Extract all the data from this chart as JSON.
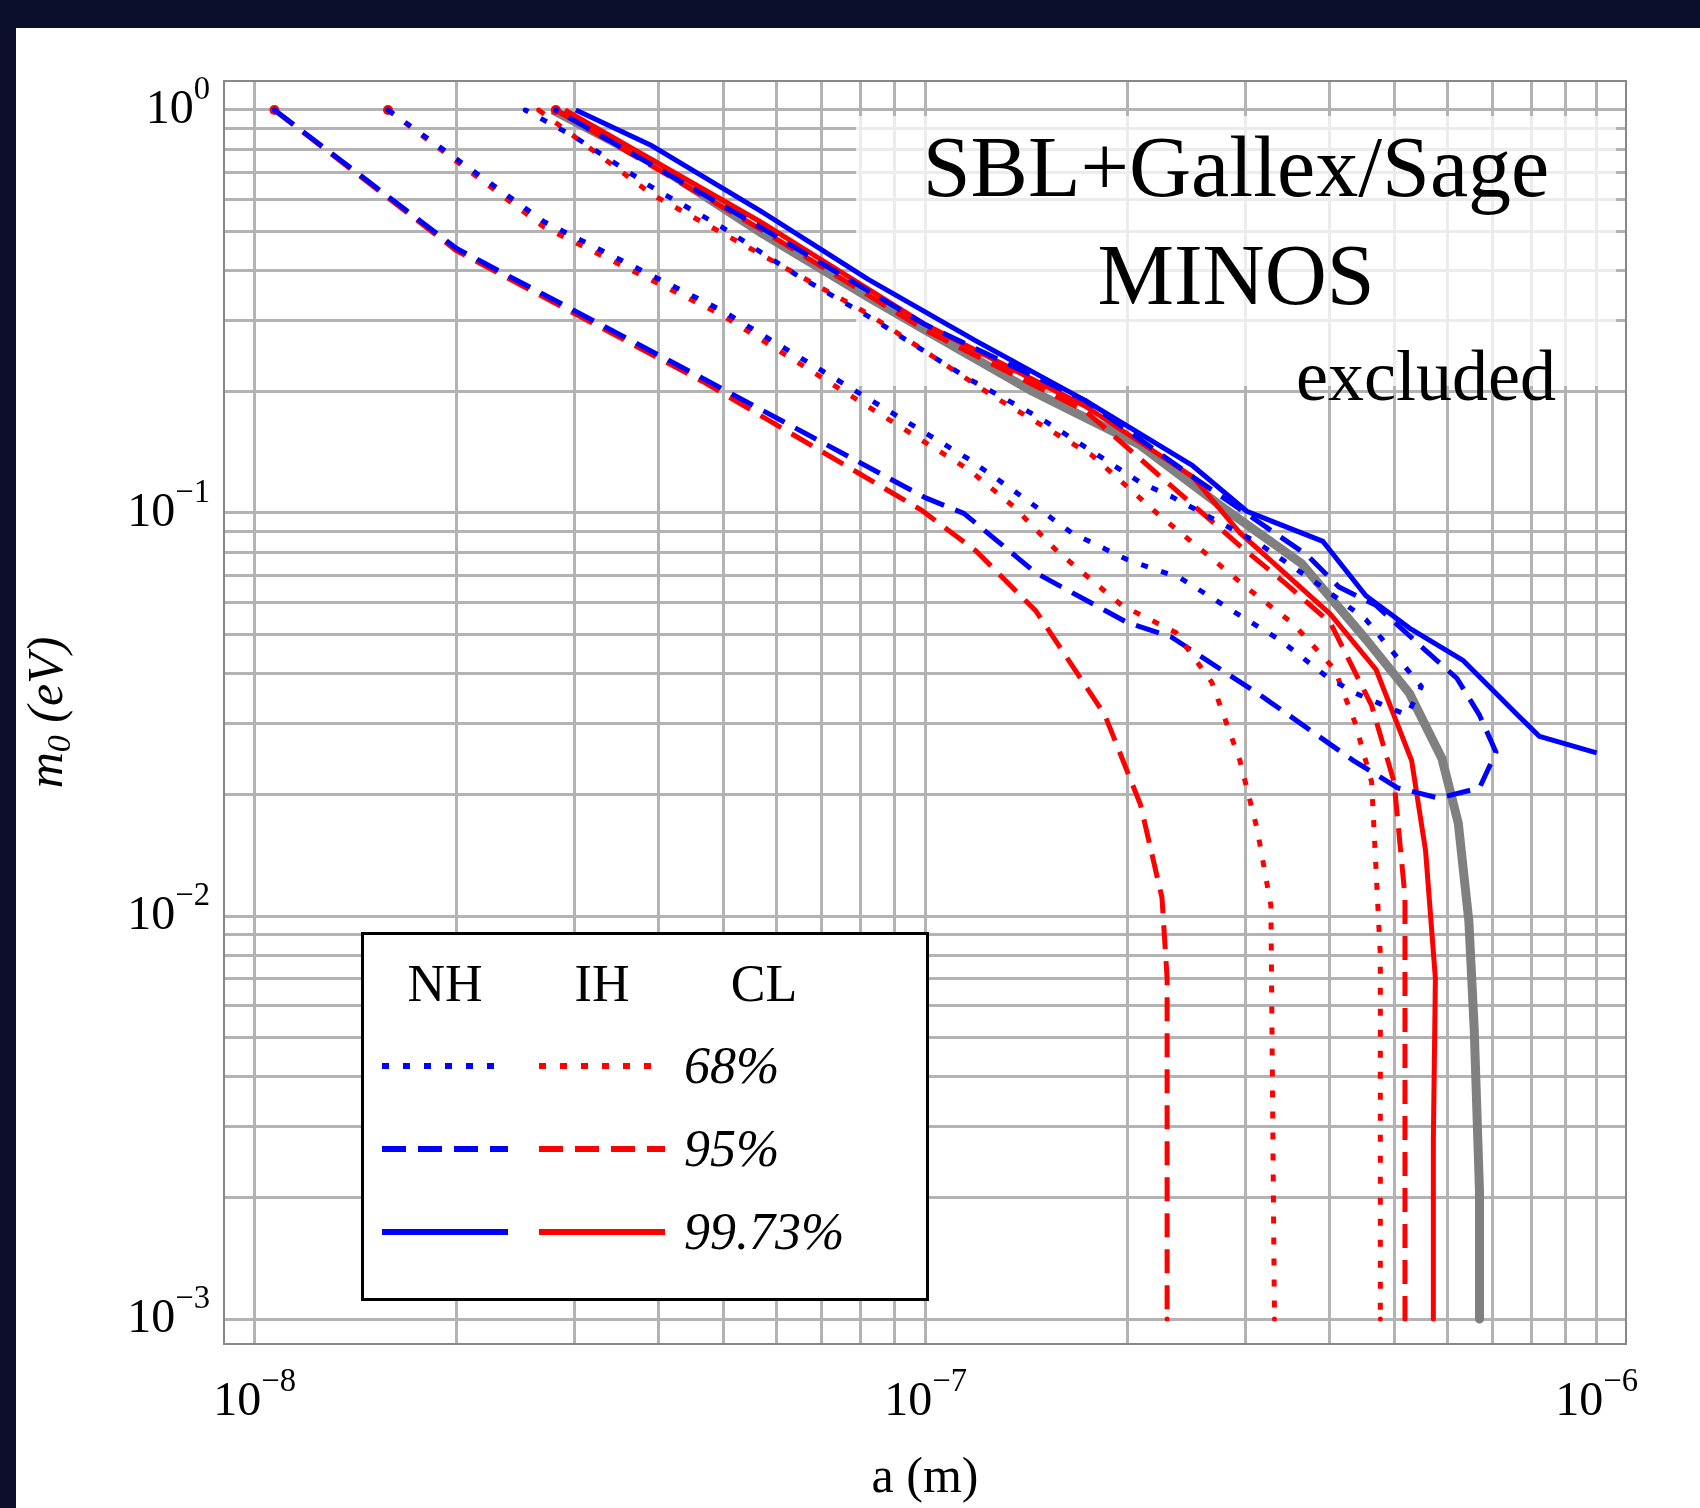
{
  "chart_data": {
    "type": "line",
    "xlabel": "a (m)",
    "ylabel": "m$_{0}$ (eV)",
    "log": "xy",
    "grid": true,
    "xlim": [
      9.08e-09,
      1.106e-06
    ],
    "ylim": [
      0.000867,
      1.18
    ],
    "xticks": [
      {
        "value": 1e-08,
        "label": "10$^{−8}$"
      },
      {
        "value": 2e-08,
        "label": null
      },
      {
        "value": 3e-08,
        "label": null
      },
      {
        "value": 4e-08,
        "label": null
      },
      {
        "value": 5e-08,
        "label": null
      },
      {
        "value": 6e-08,
        "label": null
      },
      {
        "value": 7e-08,
        "label": null
      },
      {
        "value": 8e-08,
        "label": null
      },
      {
        "value": 9e-08,
        "label": null
      },
      {
        "value": 1e-07,
        "label": "10$^{−7}$"
      },
      {
        "value": 2e-07,
        "label": null
      },
      {
        "value": 3e-07,
        "label": null
      },
      {
        "value": 4e-07,
        "label": null
      },
      {
        "value": 5e-07,
        "label": null
      },
      {
        "value": 6e-07,
        "label": null
      },
      {
        "value": 7e-07,
        "label": null
      },
      {
        "value": 8e-07,
        "label": null
      },
      {
        "value": 9e-07,
        "label": null
      },
      {
        "value": 1e-06,
        "label": "10$^{−6}$"
      }
    ],
    "yticks": [
      {
        "value": 0.001,
        "label": "10$^{−3}$"
      },
      {
        "value": 0.002,
        "label": null
      },
      {
        "value": 0.003,
        "label": null
      },
      {
        "value": 0.004,
        "label": null
      },
      {
        "value": 0.005,
        "label": null
      },
      {
        "value": 0.006,
        "label": null
      },
      {
        "value": 0.007,
        "label": null
      },
      {
        "value": 0.008,
        "label": null
      },
      {
        "value": 0.009,
        "label": null
      },
      {
        "value": 0.01,
        "label": "10$^{−2}$"
      },
      {
        "value": 0.02,
        "label": null
      },
      {
        "value": 0.03,
        "label": null
      },
      {
        "value": 0.04,
        "label": null
      },
      {
        "value": 0.05,
        "label": null
      },
      {
        "value": 0.06,
        "label": null
      },
      {
        "value": 0.07,
        "label": null
      },
      {
        "value": 0.08,
        "label": null
      },
      {
        "value": 0.09,
        "label": null
      },
      {
        "value": 0.1,
        "label": "10$^{−1}$"
      },
      {
        "value": 0.2,
        "label": null
      },
      {
        "value": 0.3,
        "label": null
      },
      {
        "value": 0.4,
        "label": null
      },
      {
        "value": 0.5,
        "label": null
      },
      {
        "value": 0.6,
        "label": null
      },
      {
        "value": 0.7,
        "label": null
      },
      {
        "value": 0.8,
        "label": null
      },
      {
        "value": 0.9,
        "label": null
      },
      {
        "value": 1,
        "label": "10$^{0}$"
      }
    ],
    "annotations": [
      "SBL+Gallex/Sage",
      "MINOS",
      "excluded",
      "NH",
      "IH",
      "CL",
      "68%",
      "95%",
      "99.73%"
    ],
    "series": [
      {
        "color": "#0000ff",
        "line_style": "dotted",
        "x": [
          1.58e-08,
          2.7e-08,
          4.97e-08,
          1.16e-07,
          1.39e-07,
          1.65e-07,
          2e-07,
          2.4e-07,
          2.85e-07,
          3.38e-07,
          3.95e-07,
          4.34e-07,
          4.76e-07,
          5.22e-07,
          5.48e-07,
          5.14e-07,
          4.53e-07,
          3.88e-07,
          3.12e-07,
          2.32e-07,
          2.09e-07,
          1.49e-07,
          1.16e-07,
          8.34e-08,
          6.38e-08,
          4.97e-08,
          3.88e-08,
          3e-08,
          2.53e-08
        ],
        "values": [
          1.0,
          0.528,
          0.318,
          0.136,
          0.11,
          0.0893,
          0.0765,
          0.0689,
          0.0575,
          0.0483,
          0.0394,
          0.0359,
          0.0336,
          0.0315,
          0.0371,
          0.0422,
          0.0544,
          0.0659,
          0.0845,
          0.11,
          0.119,
          0.171,
          0.215,
          0.303,
          0.392,
          0.512,
          0.648,
          0.857,
          1.0
        ]
      },
      {
        "color": "#ff0000",
        "line_style": "dotted",
        "x": [
          1.58e-08,
          2.7e-08,
          4.97e-08,
          1.16e-07,
          1.35e-07,
          1.57e-07,
          1.96e-07,
          2.36e-07,
          2.67e-07,
          2.94e-07,
          3.12e-07,
          3.27e-07,
          3.31e-07
        ],
        "values": [
          1.0,
          0.512,
          0.31,
          0.128,
          0.104,
          0.0804,
          0.059,
          0.0505,
          0.038,
          0.0243,
          0.0164,
          0.0106,
          0.001
        ]
      },
      {
        "color": "#0000ff",
        "line_style": "dashed",
        "x": [
          1.07e-08,
          2e-08,
          4.65e-08,
          1e-07,
          1.14e-07,
          1.46e-07,
          2e-07,
          2.32e-07,
          3.17e-07,
          4.34e-07,
          5.05e-07,
          5.82e-07,
          6.69e-07,
          7.08e-07,
          6.69e-07,
          6.19e-07,
          5.48e-07,
          4.69e-07,
          4.13e-07,
          3.71e-07,
          2.5e-07,
          1.73e-07,
          1e-07,
          5.67e-08,
          2.81e-08
        ],
        "values": [
          1.0,
          0.453,
          0.216,
          0.109,
          0.0998,
          0.071,
          0.0534,
          0.0493,
          0.0351,
          0.0243,
          0.0208,
          0.0196,
          0.0208,
          0.0255,
          0.0315,
          0.0389,
          0.0466,
          0.059,
          0.0655,
          0.0784,
          0.123,
          0.19,
          0.293,
          0.512,
          1.0
        ]
      },
      {
        "color": "#ff0000",
        "line_style": "dashed",
        "x": [
          1.07e-08,
          2e-08,
          4.65e-08,
          9.86e-08,
          1.19e-07,
          1.46e-07,
          1.85e-07,
          2.09e-07,
          2.25e-07,
          2.29e-07,
          2.29e-07
        ],
        "values": [
          1.0,
          0.447,
          0.212,
          0.1016,
          0.0804,
          0.0571,
          0.0315,
          0.0189,
          0.0111,
          0.007,
          0.001
        ]
      },
      {
        "color": "#0000ff",
        "line_style": "solid",
        "x": [
          3.01e-08,
          3.91e-08,
          5.67e-08,
          8.21e-08,
          1.19e-07,
          1.73e-07,
          2.5e-07,
          3.01e-07,
          3.91e-07,
          4.53e-07,
          5.26e-07,
          6.33e-07,
          7.63e-07,
          8.22e-07,
          1e-06
        ],
        "values": [
          1.0,
          0.815,
          0.562,
          0.38,
          0.267,
          0.19,
          0.131,
          0.101,
          0.085,
          0.0623,
          0.0518,
          0.043,
          0.0315,
          0.0279,
          0.0254
        ]
      },
      {
        "color": "#ff0000",
        "line_style": "solid",
        "x": [
          2.9e-08,
          5.67e-08,
          1e-07,
          1.73e-07,
          2.5e-07,
          2.94e-07,
          4.01e-07,
          4.69e-07,
          5.3e-07,
          5.56e-07,
          5.75e-07,
          5.71e-07,
          5.71e-07
        ],
        "values": [
          1.0,
          0.528,
          0.293,
          0.184,
          0.123,
          0.0893,
          0.0561,
          0.0409,
          0.0243,
          0.0145,
          0.007,
          0.0028,
          0.001
        ]
      },
      {
        "color": "#ff0000",
        "line_style": "dotted",
        "x": [
          2.65e-08,
          3.91e-08,
          5.67e-08,
          8.21e-08,
          1.26e-07,
          1.77e-07,
          2.22e-07,
          2.59e-07,
          3.03e-07,
          3.53e-07,
          4.07e-07,
          4.37e-07,
          4.62e-07,
          4.76e-07,
          4.76e-07
        ],
        "values": [
          1.0,
          0.617,
          0.439,
          0.312,
          0.195,
          0.139,
          0.0993,
          0.0804,
          0.0647,
          0.0531,
          0.0409,
          0.03,
          0.0215,
          0.008,
          0.001
        ]
      },
      {
        "color": "#ff0000",
        "line_style": "dashed",
        "x": [
          2.81e-08,
          5.67e-08,
          1e-07,
          1.73e-07,
          2.94e-07,
          3.43e-07,
          4.01e-07,
          4.62e-07,
          4.99e-07,
          5.18e-07,
          5.18e-07
        ],
        "values": [
          1.0,
          0.506,
          0.284,
          0.179,
          0.0829,
          0.0671,
          0.0534,
          0.0333,
          0.0215,
          0.0112,
          0.001
        ]
      },
      {
        "color": "#808080",
        "line_style": "solid",
        "x": [
          2.78e-08,
          3.91e-08,
          5.67e-08,
          8.21e-08,
          1e-07,
          1.43e-07,
          2.08e-07,
          2.8e-07,
          3.63e-07,
          4.53e-07,
          5.26e-07,
          5.88e-07,
          6.22e-07,
          6.45e-07,
          6.57e-07,
          6.69e-07,
          6.69e-07
        ],
        "values": [
          1.0,
          0.743,
          0.497,
          0.343,
          0.284,
          0.202,
          0.148,
          0.102,
          0.075,
          0.0486,
          0.0357,
          0.0246,
          0.017,
          0.0097,
          0.00523,
          0.00207,
          0.001
        ]
      }
    ]
  }
}
